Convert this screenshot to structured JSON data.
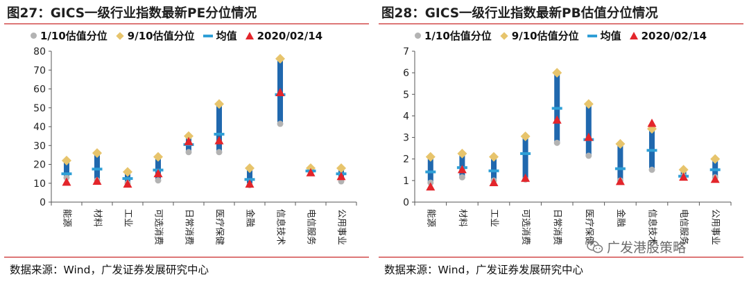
{
  "panels": [
    {
      "title": "图27：GICS一级行业指数最新PE分位情况",
      "legend": [
        "1/10估值分位",
        "9/10估值分位",
        "均值",
        "2020/02/14"
      ],
      "source": "数据来源：Wind，广发证券发展研究中心"
    },
    {
      "title": "图28：GICS一级行业指数最新PB估值分位情况",
      "legend": [
        "1/10估值分位",
        "9/10估值分位",
        "均值",
        "2020/02/14"
      ],
      "source": "数据来源：Wind，广发证券发展研究中心"
    }
  ],
  "watermark": "广发港股策略",
  "colors": {
    "bar": "#2068ae",
    "p10": "#b3b3b3",
    "p90": "#e7c46c",
    "mean": "#2f9fd6",
    "current": "#e3252b",
    "title_rule": "#c00000"
  },
  "chart_data": [
    {
      "type": "range",
      "title": "图27：GICS一级行业指数最新PE分位情况",
      "categories": [
        "能源",
        "材料",
        "工业",
        "可选消费",
        "日常消费",
        "医疗保健",
        "金融",
        "信息技术",
        "电信服务",
        "公用事业"
      ],
      "ylim": [
        0,
        80
      ],
      "yticks": [
        0,
        10,
        20,
        30,
        40,
        50,
        60,
        70,
        80
      ],
      "series": [
        {
          "name": "1/10估值分位",
          "values": [
            13,
            11.5,
            10,
            11.5,
            26.5,
            26.5,
            9,
            41.5,
            16,
            11
          ]
        },
        {
          "name": "9/10估值分位",
          "values": [
            22,
            26,
            16,
            24,
            35,
            52,
            18,
            76,
            18,
            18
          ]
        },
        {
          "name": "均值",
          "values": [
            15,
            17.5,
            12.5,
            17,
            30.5,
            36,
            12,
            57,
            16.5,
            15
          ]
        },
        {
          "name": "2020/02/14",
          "values": [
            10.5,
            11,
            9.5,
            15,
            32,
            32.5,
            9.5,
            58,
            15.5,
            13.5
          ]
        }
      ],
      "grid": false
    },
    {
      "type": "range",
      "title": "图28：GICS一级行业指数最新PB估值分位情况",
      "categories": [
        "能源",
        "材料",
        "工业",
        "可选消费",
        "日常消费",
        "医疗保健",
        "金融",
        "信息技术",
        "电信服务",
        "公用事业"
      ],
      "ylim": [
        0,
        7
      ],
      "yticks": [
        0,
        1,
        2,
        3,
        4,
        5,
        6,
        7
      ],
      "series": [
        {
          "name": "1/10估值分位",
          "values": [
            0.9,
            1.15,
            1.0,
            1.05,
            2.75,
            2.15,
            1.0,
            1.5,
            1.2,
            1.15
          ]
        },
        {
          "name": "9/10估值分位",
          "values": [
            2.1,
            2.25,
            2.1,
            3.05,
            6.0,
            4.55,
            2.7,
            3.4,
            1.5,
            2.0
          ]
        },
        {
          "name": "均值",
          "values": [
            1.4,
            1.6,
            1.45,
            2.25,
            4.35,
            2.9,
            1.55,
            2.4,
            1.2,
            1.5
          ]
        },
        {
          "name": "2020/02/14",
          "values": [
            0.7,
            1.5,
            0.9,
            1.1,
            3.8,
            3.0,
            0.95,
            3.65,
            1.15,
            1.05
          ]
        }
      ],
      "grid": false
    }
  ]
}
